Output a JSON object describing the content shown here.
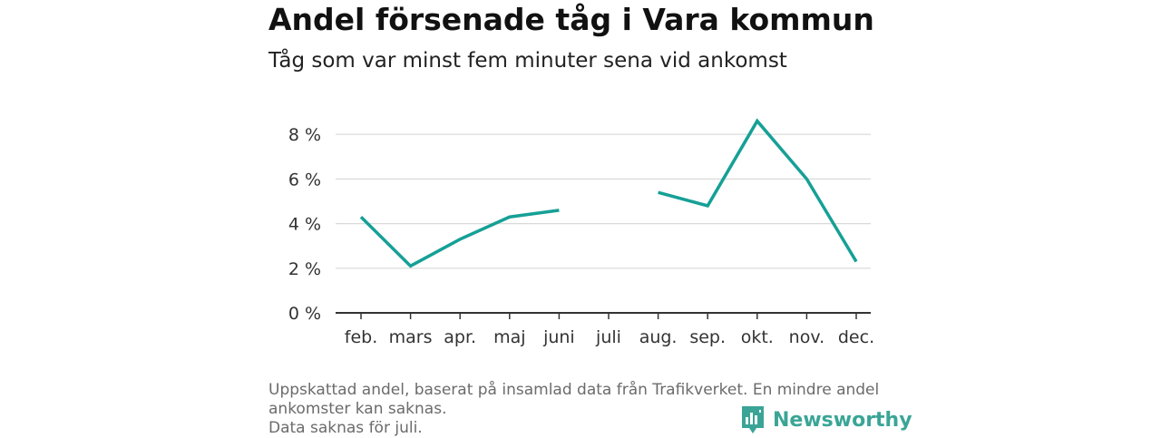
{
  "header": {
    "title": "Andel försenade tåg i Vara kommun",
    "subtitle": "Tåg som var minst fem minuter sena vid ankomst"
  },
  "chart_data": {
    "type": "line",
    "title": "Andel försenade tåg i Vara kommun",
    "subtitle": "Tåg som var minst fem minuter sena vid ankomst",
    "categories": [
      "feb.",
      "mars",
      "apr.",
      "maj",
      "juni",
      "juli",
      "aug.",
      "sep.",
      "okt.",
      "nov.",
      "dec."
    ],
    "series": [
      {
        "values": [
          4.3,
          2.1,
          3.3,
          4.3,
          4.6,
          null,
          5.4,
          4.8,
          8.6,
          6.0,
          2.3
        ]
      }
    ],
    "yticks": [
      "0 %",
      "2 %",
      "4 %",
      "6 %",
      "8 %"
    ],
    "ylim": [
      0,
      8.8
    ],
    "grid": true,
    "line_color": "#16a096"
  },
  "footer": {
    "line1": "Uppskattad andel, baserat på insamlad data från Trafikverket. En mindre andel",
    "line2": "ankomster kan saknas.",
    "line3": "Data saknas för juli."
  },
  "brand": {
    "name": "Newsworthy",
    "icon": "bar-chart-logo-icon",
    "color": "#3aa596"
  }
}
